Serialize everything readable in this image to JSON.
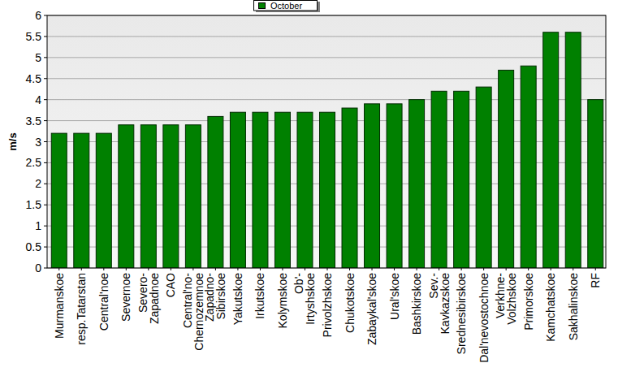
{
  "chart_data": {
    "type": "bar",
    "ylabel": "m/s",
    "categories": [
      "Murmanskoe",
      "resp.Tatarstan",
      "Central'noe",
      "Severnoe",
      "Severo-\nZapadnoe",
      "CAO",
      "Central'no-\nChernozemnoe",
      "Zapadno-\nSibirskoe",
      "Yakutskoe",
      "Irkutskoe",
      "Kolymskoe",
      "Ob'-\nIrtyshskoe",
      "Privolzhskoe",
      "Chukotskoe",
      "Zabaykal'skoe",
      "Ural'skoe",
      "Bashkirskoe",
      "Sev.-\nKavkazskoe",
      "Srednesibirskoe",
      "Dal'nevostochnoe",
      "Verkhne-\nVolzhskoe",
      "Primorskoe",
      "Kamchatskoe",
      "Sakhalinskoe",
      "RF"
    ],
    "series": [
      {
        "name": "October",
        "color": "#008000",
        "values": [
          3.2,
          3.2,
          3.2,
          3.4,
          3.4,
          3.4,
          3.4,
          3.6,
          3.7,
          3.7,
          3.7,
          3.7,
          3.7,
          3.8,
          3.9,
          3.9,
          4.0,
          4.2,
          4.2,
          4.3,
          4.7,
          4.8,
          5.6,
          5.6,
          4.0
        ]
      }
    ],
    "ylim": [
      0,
      6
    ],
    "yticks": [
      0,
      0.5,
      1,
      1.5,
      2,
      2.5,
      3,
      3.5,
      4,
      4.5,
      5,
      5.5,
      6
    ],
    "grid": true,
    "legend": "top"
  }
}
